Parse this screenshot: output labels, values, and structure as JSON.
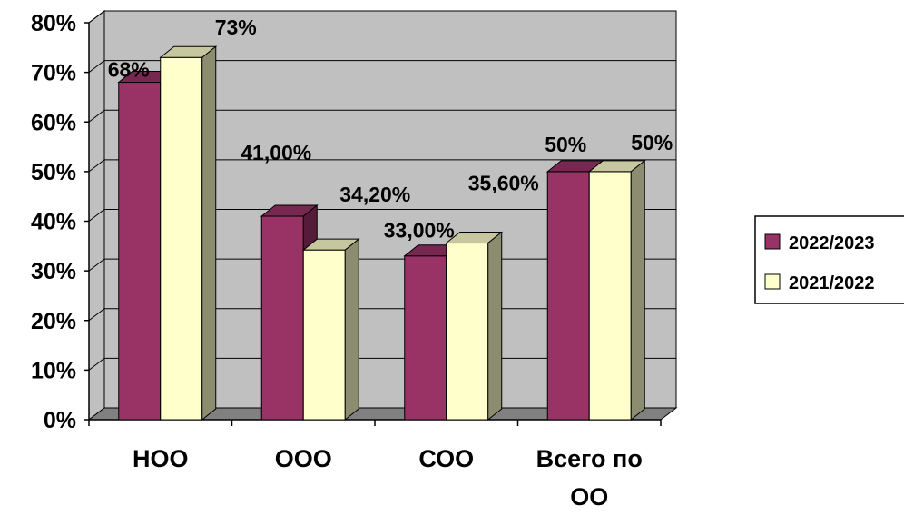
{
  "chart_data": {
    "type": "bar",
    "categories": [
      "НОО",
      "ООО",
      "СОО",
      "Всего по ОО"
    ],
    "series": [
      {
        "name": "2022/2023",
        "values": [
          68,
          41,
          33,
          50
        ],
        "labels": [
          "68%",
          "41,00%",
          "33,00%",
          "50%"
        ],
        "color": "#993366"
      },
      {
        "name": "2021/2022",
        "values": [
          73,
          34.2,
          35.6,
          50
        ],
        "labels": [
          "73%",
          "34,20%",
          "35,60%",
          "50%"
        ],
        "color": "#ffffcc"
      }
    ],
    "yticks": [
      "0%",
      "10%",
      "20%",
      "30%",
      "40%",
      "50%",
      "60%",
      "70%",
      "80%"
    ],
    "ylim": [
      0,
      80
    ],
    "grid": true,
    "legend_position": "right",
    "plot_area_color": "#c0c0c0",
    "title": "",
    "xlabel": "",
    "ylabel": ""
  }
}
